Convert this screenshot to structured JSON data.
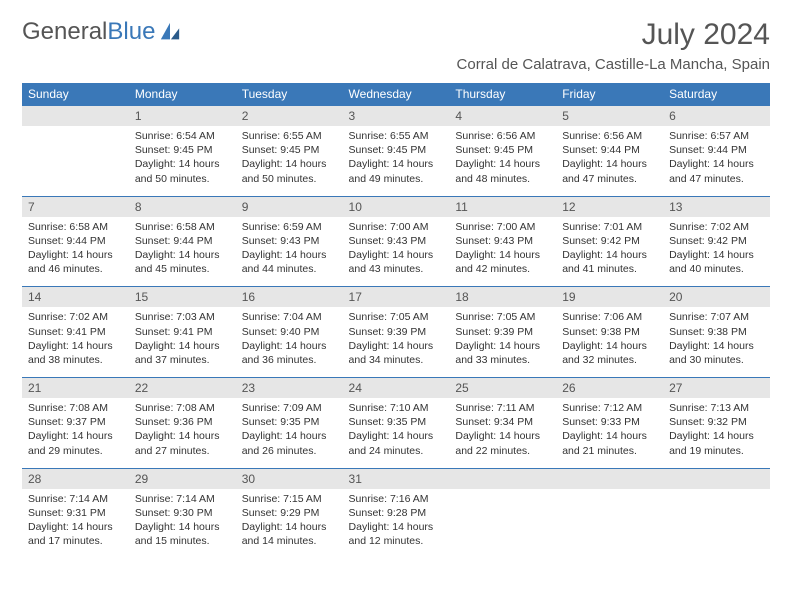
{
  "logo": {
    "word1": "General",
    "word2": "Blue"
  },
  "title": "July 2024",
  "location": "Corral de Calatrava, Castille-La Mancha, Spain",
  "colors": {
    "brand_blue": "#3a78b8",
    "header_bg": "#3a78b8",
    "header_text": "#ffffff",
    "daynum_bg": "#e6e6e6",
    "text": "#333333",
    "title_text": "#555555",
    "border": "#3a78b8",
    "background": "#ffffff"
  },
  "typography": {
    "title_fontsize": 30,
    "location_fontsize": 15,
    "dayheader_fontsize": 12,
    "daynum_fontsize": 12,
    "cell_fontsize": 10.5
  },
  "day_headers": [
    "Sunday",
    "Monday",
    "Tuesday",
    "Wednesday",
    "Thursday",
    "Friday",
    "Saturday"
  ],
  "first_weekday_index": 1,
  "days": [
    {
      "n": 1,
      "sunrise": "6:54 AM",
      "sunset": "9:45 PM",
      "daylight": "14 hours and 50 minutes."
    },
    {
      "n": 2,
      "sunrise": "6:55 AM",
      "sunset": "9:45 PM",
      "daylight": "14 hours and 50 minutes."
    },
    {
      "n": 3,
      "sunrise": "6:55 AM",
      "sunset": "9:45 PM",
      "daylight": "14 hours and 49 minutes."
    },
    {
      "n": 4,
      "sunrise": "6:56 AM",
      "sunset": "9:45 PM",
      "daylight": "14 hours and 48 minutes."
    },
    {
      "n": 5,
      "sunrise": "6:56 AM",
      "sunset": "9:44 PM",
      "daylight": "14 hours and 47 minutes."
    },
    {
      "n": 6,
      "sunrise": "6:57 AM",
      "sunset": "9:44 PM",
      "daylight": "14 hours and 47 minutes."
    },
    {
      "n": 7,
      "sunrise": "6:58 AM",
      "sunset": "9:44 PM",
      "daylight": "14 hours and 46 minutes."
    },
    {
      "n": 8,
      "sunrise": "6:58 AM",
      "sunset": "9:44 PM",
      "daylight": "14 hours and 45 minutes."
    },
    {
      "n": 9,
      "sunrise": "6:59 AM",
      "sunset": "9:43 PM",
      "daylight": "14 hours and 44 minutes."
    },
    {
      "n": 10,
      "sunrise": "7:00 AM",
      "sunset": "9:43 PM",
      "daylight": "14 hours and 43 minutes."
    },
    {
      "n": 11,
      "sunrise": "7:00 AM",
      "sunset": "9:43 PM",
      "daylight": "14 hours and 42 minutes."
    },
    {
      "n": 12,
      "sunrise": "7:01 AM",
      "sunset": "9:42 PM",
      "daylight": "14 hours and 41 minutes."
    },
    {
      "n": 13,
      "sunrise": "7:02 AM",
      "sunset": "9:42 PM",
      "daylight": "14 hours and 40 minutes."
    },
    {
      "n": 14,
      "sunrise": "7:02 AM",
      "sunset": "9:41 PM",
      "daylight": "14 hours and 38 minutes."
    },
    {
      "n": 15,
      "sunrise": "7:03 AM",
      "sunset": "9:41 PM",
      "daylight": "14 hours and 37 minutes."
    },
    {
      "n": 16,
      "sunrise": "7:04 AM",
      "sunset": "9:40 PM",
      "daylight": "14 hours and 36 minutes."
    },
    {
      "n": 17,
      "sunrise": "7:05 AM",
      "sunset": "9:39 PM",
      "daylight": "14 hours and 34 minutes."
    },
    {
      "n": 18,
      "sunrise": "7:05 AM",
      "sunset": "9:39 PM",
      "daylight": "14 hours and 33 minutes."
    },
    {
      "n": 19,
      "sunrise": "7:06 AM",
      "sunset": "9:38 PM",
      "daylight": "14 hours and 32 minutes."
    },
    {
      "n": 20,
      "sunrise": "7:07 AM",
      "sunset": "9:38 PM",
      "daylight": "14 hours and 30 minutes."
    },
    {
      "n": 21,
      "sunrise": "7:08 AM",
      "sunset": "9:37 PM",
      "daylight": "14 hours and 29 minutes."
    },
    {
      "n": 22,
      "sunrise": "7:08 AM",
      "sunset": "9:36 PM",
      "daylight": "14 hours and 27 minutes."
    },
    {
      "n": 23,
      "sunrise": "7:09 AM",
      "sunset": "9:35 PM",
      "daylight": "14 hours and 26 minutes."
    },
    {
      "n": 24,
      "sunrise": "7:10 AM",
      "sunset": "9:35 PM",
      "daylight": "14 hours and 24 minutes."
    },
    {
      "n": 25,
      "sunrise": "7:11 AM",
      "sunset": "9:34 PM",
      "daylight": "14 hours and 22 minutes."
    },
    {
      "n": 26,
      "sunrise": "7:12 AM",
      "sunset": "9:33 PM",
      "daylight": "14 hours and 21 minutes."
    },
    {
      "n": 27,
      "sunrise": "7:13 AM",
      "sunset": "9:32 PM",
      "daylight": "14 hours and 19 minutes."
    },
    {
      "n": 28,
      "sunrise": "7:14 AM",
      "sunset": "9:31 PM",
      "daylight": "14 hours and 17 minutes."
    },
    {
      "n": 29,
      "sunrise": "7:14 AM",
      "sunset": "9:30 PM",
      "daylight": "14 hours and 15 minutes."
    },
    {
      "n": 30,
      "sunrise": "7:15 AM",
      "sunset": "9:29 PM",
      "daylight": "14 hours and 14 minutes."
    },
    {
      "n": 31,
      "sunrise": "7:16 AM",
      "sunset": "9:28 PM",
      "daylight": "14 hours and 12 minutes."
    }
  ],
  "labels": {
    "sunrise": "Sunrise:",
    "sunset": "Sunset:",
    "daylight": "Daylight:"
  }
}
